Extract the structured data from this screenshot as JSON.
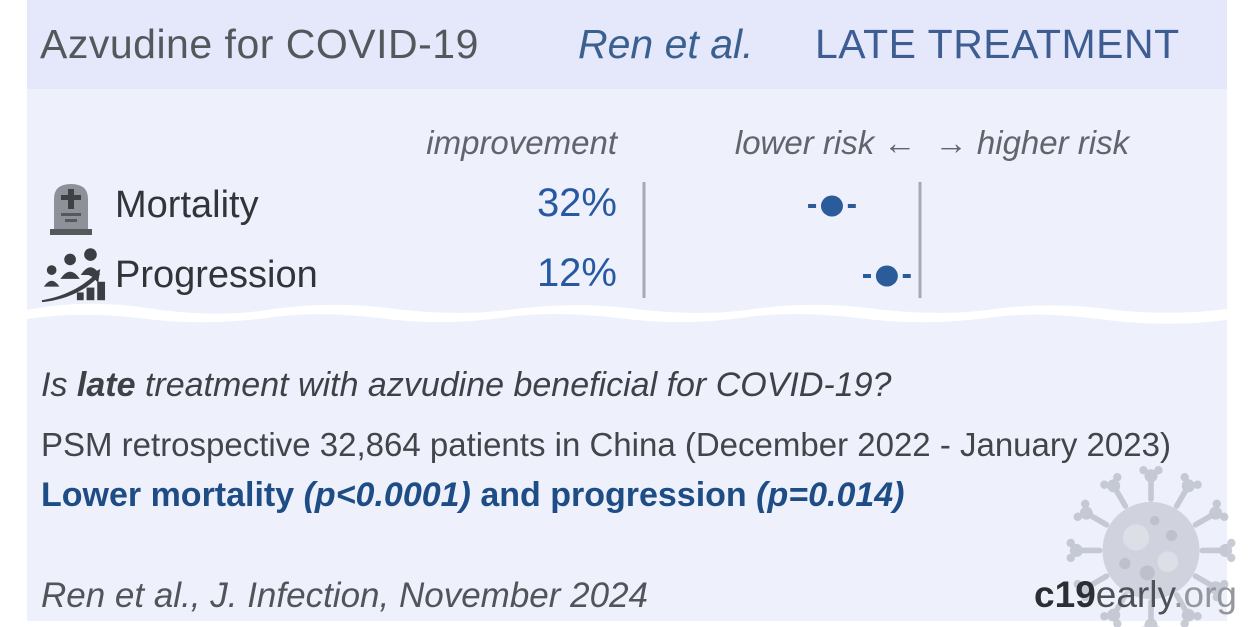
{
  "colors": {
    "page_bg": "#ffffff",
    "card_bg": "#eef0fb",
    "header_bg": "#e5e8fa",
    "title_gray": "#54575b",
    "blue_author": "#3a608f",
    "blue_stage": "#3e5d92",
    "blue_value": "#2759a3",
    "blue_marker": "#2a5b9b",
    "blue_result": "#1e4d85",
    "text_dark": "#3e4247",
    "text_gray": "#61656b",
    "axis_gray": "#a6aab2"
  },
  "header": {
    "title": "Azvudine for COVID-19",
    "author": "Ren et al.",
    "stage": "LATE TREATMENT"
  },
  "table": {
    "improvement_label": "improvement",
    "risk_axis_label": "lower risk ←  → higher risk",
    "rows": [
      {
        "label": "Mortality",
        "improvement": "32%",
        "icon": "tombstone-icon"
      },
      {
        "label": "Progression",
        "improvement": "12%",
        "icon": "progression-icon"
      }
    ]
  },
  "chart_data": {
    "type": "forest",
    "title": "Azvudine for COVID-19, Ren et al., late treatment",
    "axis": {
      "left_label": "lower risk",
      "right_label": "higher risk",
      "reference_line": "null effect (right line)"
    },
    "rows": [
      {
        "outcome": "Mortality",
        "improvement_pct": 32,
        "marker_frac": 0.681,
        "whisker_frac_halfwidth": 0.072
      },
      {
        "outcome": "Progression",
        "improvement_pct": 12,
        "marker_frac": 0.88,
        "whisker_frac_halfwidth": 0.072
      }
    ]
  },
  "summary": {
    "question_prefix": "Is ",
    "question_bold": "late",
    "question_suffix": " treatment with azvudine beneficial for COVID-19?",
    "study_line": "PSM retrospective 32,864 patients in China (December 2022 - January 2023)",
    "result_part1": "Lower mortality ",
    "result_p1": "(p<0.0001)",
    "result_part2": " and progression ",
    "result_p2": "(p=0.014)"
  },
  "footer": {
    "citation": "Ren et al., J. Infection, November 2024",
    "logo_bold": "c19",
    "logo_mid": "early",
    "logo_suffix": ".org"
  }
}
